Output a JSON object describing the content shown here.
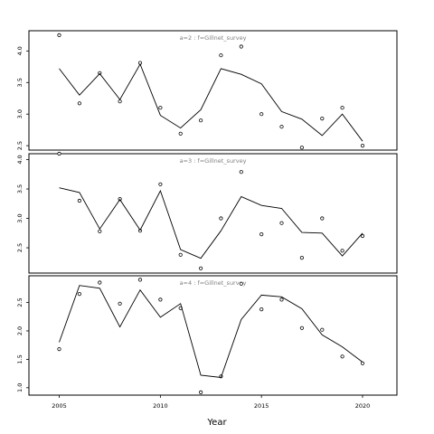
{
  "chart_data": {
    "type": "scatter",
    "xlabel": "Year",
    "ylabel": "",
    "x_ticks": [
      2005,
      2010,
      2015,
      2020
    ],
    "xlim": [
      2003.5,
      2021.7
    ],
    "panels": [
      {
        "title": "a=2 : f=Gillnet_survey",
        "ylim": [
          2.43,
          4.32
        ],
        "y_ticks": [
          "2.5",
          "3.0",
          "3.5",
          "4.0"
        ],
        "series": [
          {
            "kind": "points",
            "x": [
              2005,
              2006,
              2007,
              2008,
              2009,
              2010,
              2011,
              2012,
              2013,
              2014,
              2015,
              2016,
              2017,
              2018,
              2019,
              2020
            ],
            "y": [
              4.25,
              3.17,
              3.65,
              3.2,
              3.81,
              3.1,
              2.69,
              2.9,
              3.93,
              4.07,
              3.0,
              2.8,
              2.47,
              2.93,
              3.1,
              2.5
            ]
          },
          {
            "kind": "line",
            "x": [
              2005,
              2006,
              2007,
              2008,
              2009,
              2010,
              2011,
              2012,
              2013,
              2014,
              2015,
              2016,
              2017,
              2018,
              2019,
              2020
            ],
            "y": [
              3.72,
              3.3,
              3.64,
              3.23,
              3.79,
              2.98,
              2.78,
              3.07,
              3.72,
              3.63,
              3.48,
              3.04,
              2.92,
              2.66,
              3.0,
              2.57
            ]
          }
        ]
      },
      {
        "title": "a=3 : f=Gillnet_survey",
        "ylim": [
          2.07,
          4.1
        ],
        "y_ticks": [
          "2.5",
          "3.0",
          "3.5",
          "4.0"
        ],
        "series": [
          {
            "kind": "points",
            "x": [
              2005,
              2006,
              2007,
              2008,
              2009,
              2010,
              2011,
              2012,
              2013,
              2014,
              2015,
              2016,
              2017,
              2018,
              2019,
              2020
            ],
            "y": [
              4.1,
              3.3,
              2.78,
              3.33,
              2.79,
              3.58,
              2.38,
              2.15,
              3.0,
              3.79,
              2.73,
              2.92,
              2.33,
              3.0,
              2.45,
              2.7
            ]
          },
          {
            "kind": "line",
            "x": [
              2005,
              2006,
              2007,
              2008,
              2009,
              2010,
              2011,
              2012,
              2013,
              2014,
              2015,
              2016,
              2017,
              2018,
              2019,
              2020
            ],
            "y": [
              3.52,
              3.44,
              2.82,
              3.32,
              2.8,
              3.47,
              2.47,
              2.32,
              2.79,
              3.37,
              3.22,
              3.17,
              2.76,
              2.75,
              2.36,
              2.75
            ]
          }
        ]
      },
      {
        "title": "a=4 : f=Gillnet_survey",
        "ylim": [
          0.87,
          2.97
        ],
        "y_ticks": [
          "1.0",
          "1.5",
          "2.0",
          "2.5"
        ],
        "series": [
          {
            "kind": "points",
            "x": [
              2005,
              2006,
              2007,
              2008,
              2009,
              2010,
              2011,
              2012,
              2013,
              2014,
              2015,
              2016,
              2017,
              2018,
              2019,
              2020
            ],
            "y": [
              1.68,
              2.65,
              2.85,
              2.48,
              2.9,
              2.55,
              2.4,
              0.92,
              1.2,
              2.83,
              2.38,
              2.55,
              2.05,
              2.02,
              1.55,
              1.43
            ]
          },
          {
            "kind": "line",
            "x": [
              2005,
              2006,
              2007,
              2008,
              2009,
              2010,
              2011,
              2012,
              2013,
              2014,
              2015,
              2016,
              2017,
              2018,
              2019,
              2020
            ],
            "y": [
              1.8,
              2.8,
              2.75,
              2.07,
              2.72,
              2.24,
              2.48,
              1.22,
              1.18,
              2.2,
              2.63,
              2.6,
              2.39,
              1.93,
              1.72,
              1.45
            ]
          }
        ]
      }
    ]
  }
}
